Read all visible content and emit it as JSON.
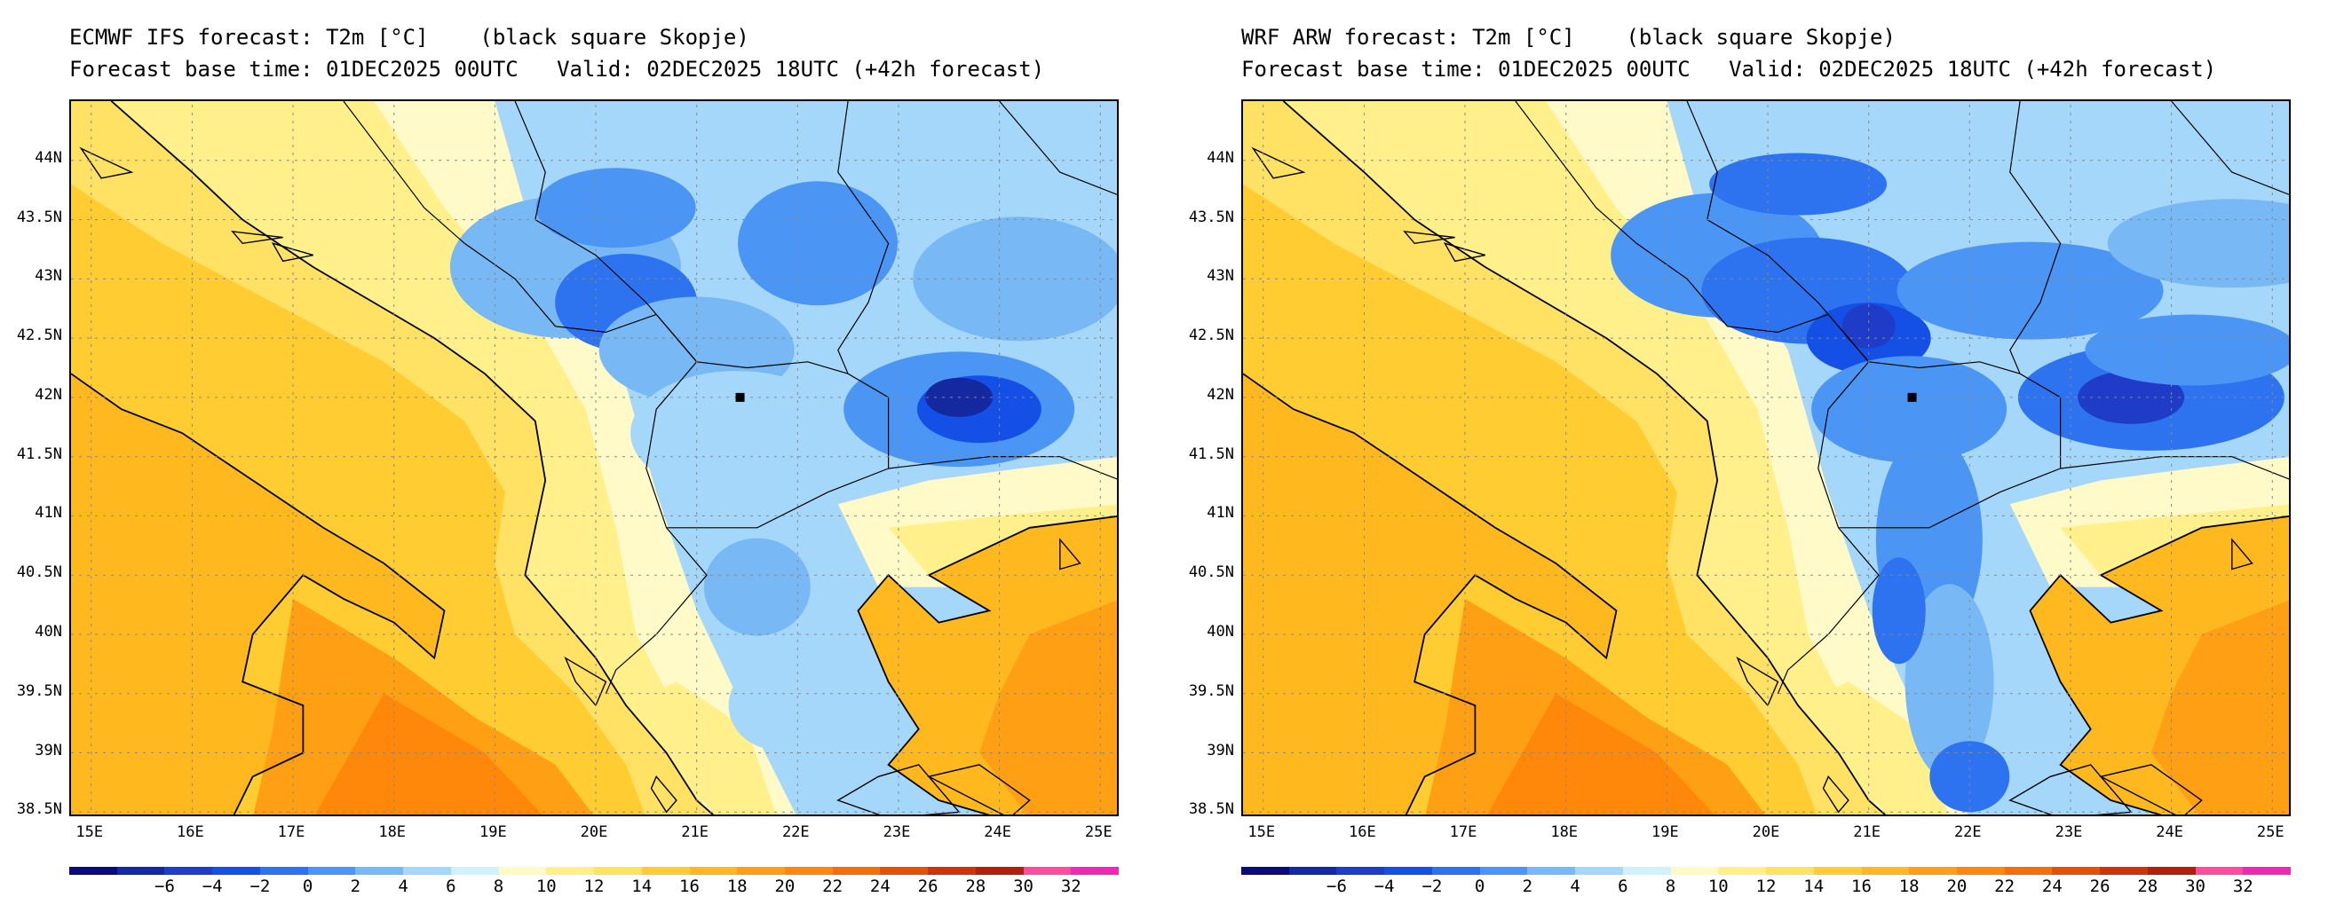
{
  "panels": [
    {
      "model_title": "ECMWF IFS forecast: T2m [°C]    (black square Skopje)",
      "time_line": "Forecast base time: 01DEC2025 00UTC   Valid: 02DEC2025 18UTC (+42h forecast)"
    },
    {
      "model_title": "WRF ARW forecast: T2m [°C]    (black square Skopje)",
      "time_line": "Forecast base time: 01DEC2025 00UTC   Valid: 02DEC2025 18UTC (+42h forecast)"
    }
  ],
  "lat_labels": [
    "44N",
    "43.5N",
    "43N",
    "42.5N",
    "42N",
    "41.5N",
    "41N",
    "40.5N",
    "40N",
    "39.5N",
    "39N",
    "38.5N"
  ],
  "lon_labels": [
    "15E",
    "16E",
    "17E",
    "18E",
    "19E",
    "20E",
    "21E",
    "22E",
    "23E",
    "24E",
    "25E"
  ],
  "colorbar_labels": [
    "−6",
    "−4",
    "−2",
    "0",
    "2",
    "4",
    "6",
    "8",
    "10",
    "12",
    "14",
    "16",
    "18",
    "20",
    "22",
    "24",
    "26",
    "28",
    "30",
    "32"
  ],
  "colorbar_colors": [
    "#0a0a78",
    "#1428a0",
    "#1e3cc8",
    "#1450e6",
    "#2d73f0",
    "#4b96f5",
    "#78b9f5",
    "#a5d7fa",
    "#d2f0ff",
    "#fffac8",
    "#fff08c",
    "#ffe164",
    "#ffcd32",
    "#ffb91e",
    "#ffa014",
    "#ff870a",
    "#f56e0a",
    "#e6500a",
    "#d2320a",
    "#b41e0a",
    "#ff4ba0",
    "#f028b4"
  ],
  "marker_label": "Skopje",
  "marker_lon": 21.43,
  "marker_lat": 42.0
}
